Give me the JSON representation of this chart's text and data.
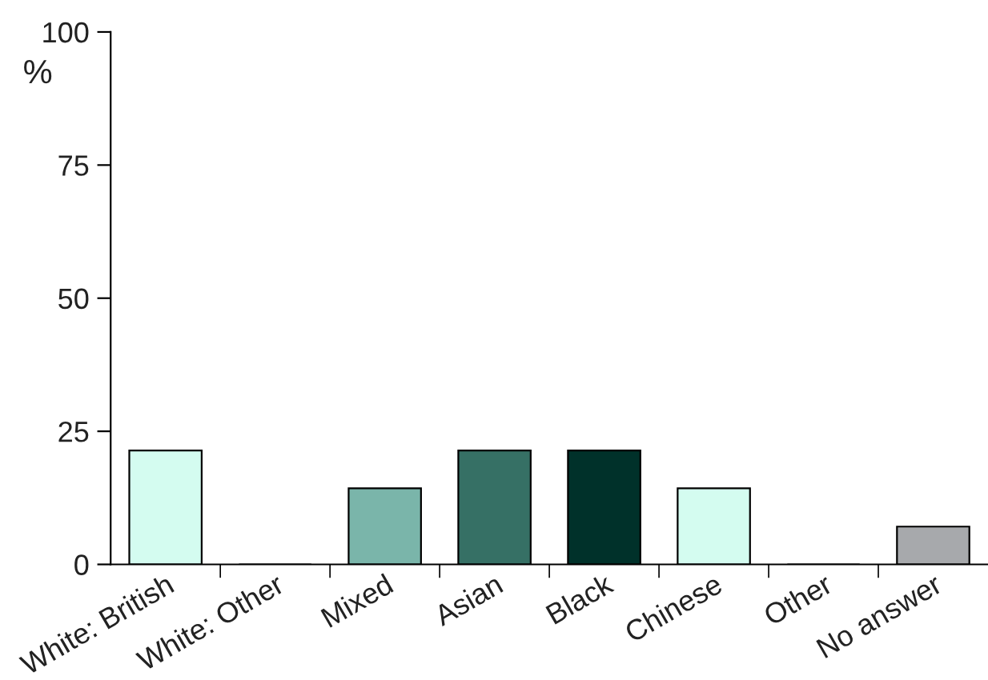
{
  "chart_data": {
    "type": "bar",
    "ylabel": "%",
    "categories": [
      "White: British",
      "White: Other",
      "Mixed",
      "Asian",
      "Black",
      "Chinese",
      "Other",
      "No answer"
    ],
    "values": [
      21.4,
      0,
      14.3,
      21.4,
      21.4,
      14.3,
      0,
      7.1
    ],
    "colors": [
      "#d4fcf0",
      "#d4fcf0",
      "#7ab5aa",
      "#367065",
      "#00312a",
      "#d4fcf0",
      "#d4fcf0",
      "#a7a9ac"
    ],
    "ylim": [
      0,
      100
    ],
    "yticks": [
      0,
      25,
      50,
      75,
      100
    ],
    "grid": false
  }
}
